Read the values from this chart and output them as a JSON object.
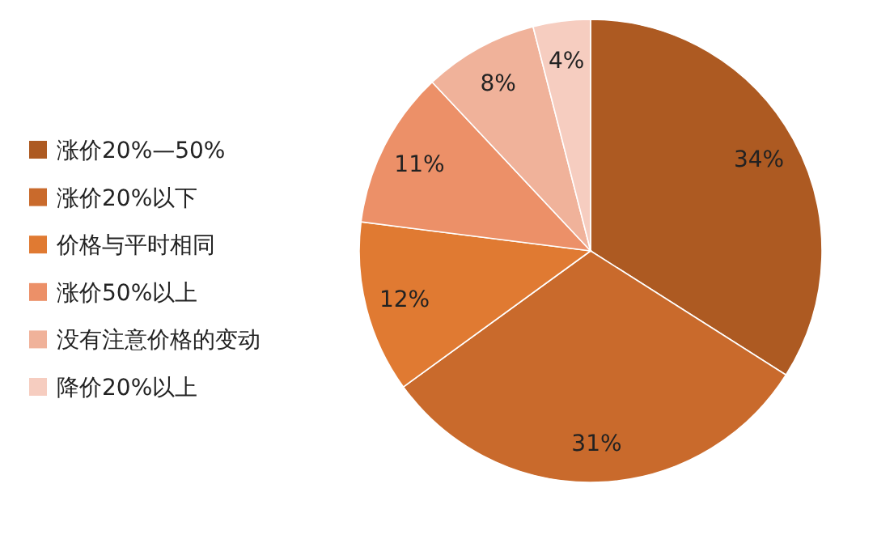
{
  "chart_data": {
    "type": "pie",
    "categories": [
      "涨价20%—50%",
      "涨价20%以下",
      "价格与平时相同",
      "涨价50%以上",
      "没有注意价格的变动",
      "降价20%以上"
    ],
    "values": [
      34,
      31,
      12,
      11,
      8,
      4
    ],
    "colors": [
      "#ad5a22",
      "#c96a2c",
      "#e07a32",
      "#ec9068",
      "#f0b29a",
      "#f6cdc0"
    ],
    "value_labels": [
      "34%",
      "31%",
      "12%",
      "11%",
      "8%",
      "4%"
    ],
    "legend": "left"
  }
}
